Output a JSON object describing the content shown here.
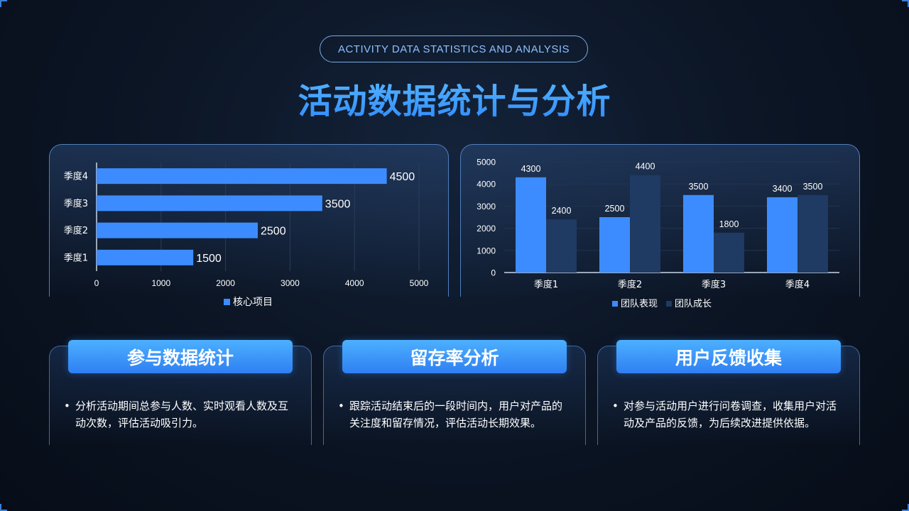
{
  "header": {
    "subtitle": "ACTIVITY DATA STATISTICS AND ANALYSIS",
    "title": "活动数据统计与分析"
  },
  "colors": {
    "accent": "#3d8cff",
    "secondary_series": "#1f3a63",
    "background": "#0c1626"
  },
  "chart_data": [
    {
      "type": "bar",
      "orientation": "horizontal",
      "categories": [
        "季度1",
        "季度2",
        "季度3",
        "季度4"
      ],
      "series": [
        {
          "name": "核心项目",
          "values": [
            1500,
            2500,
            3500,
            4500
          ]
        }
      ],
      "xlim": [
        0,
        5000
      ],
      "x_ticks": [
        "0",
        "1000",
        "2000",
        "3000",
        "4000",
        "5000"
      ],
      "grid": true,
      "legend_position": "bottom"
    },
    {
      "type": "bar",
      "orientation": "vertical",
      "categories": [
        "季度1",
        "季度2",
        "季度3",
        "季度4"
      ],
      "series": [
        {
          "name": "团队表现",
          "values": [
            4300,
            2500,
            3500,
            3400
          ]
        },
        {
          "name": "团队成长",
          "values": [
            2400,
            4400,
            1800,
            3500
          ]
        }
      ],
      "ylim": [
        0,
        5000
      ],
      "y_ticks": [
        "0",
        "1000",
        "2000",
        "3000",
        "4000",
        "5000"
      ],
      "grid": true,
      "legend_position": "bottom"
    }
  ],
  "cards": [
    {
      "title": "参与数据统计",
      "bullet": "•",
      "text": "分析活动期间总参与人数、实时观看人数及互动次数，评估活动吸引力。"
    },
    {
      "title": "留存率分析",
      "bullet": "•",
      "text": "跟踪活动结束后的一段时间内，用户对产品的关注度和留存情况，评估活动长期效果。"
    },
    {
      "title": "用户反馈收集",
      "bullet": "•",
      "text": "对参与活动用户进行问卷调查，收集用户对活动及产品的反馈，为后续改进提供依据。"
    }
  ]
}
